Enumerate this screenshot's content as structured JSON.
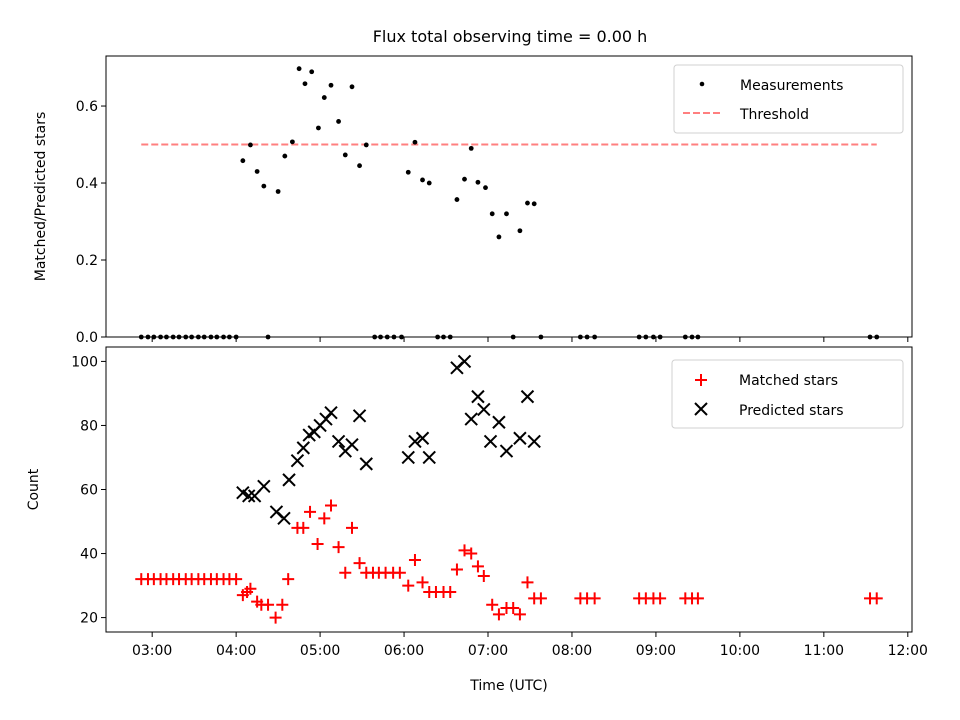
{
  "figure": {
    "title": "Flux total observing time = 0.00 h",
    "xlabel": "Time (UTC)"
  },
  "chart_data": [
    {
      "type": "scatter",
      "title": "Flux total observing time = 0.00 h",
      "xlabel": "",
      "ylabel": "Matched/Predicted stars",
      "xlim": [
        2.45,
        12.05
      ],
      "ylim": [
        0.0,
        0.73
      ],
      "yticks": [
        0.0,
        0.2,
        0.4,
        0.6
      ],
      "ytick_labels": [
        "0.0",
        "0.2",
        "0.4",
        "0.6"
      ],
      "legend": "top-right",
      "colors": {
        "measurements": "#000000",
        "threshold": "#ff7f7f"
      },
      "threshold": {
        "name": "Threshold",
        "value": 0.5,
        "x_start": 2.87,
        "x_end": 11.63
      },
      "series": [
        {
          "name": "Measurements",
          "points": [
            [
              2.87,
              0
            ],
            [
              2.95,
              0
            ],
            [
              3.02,
              0
            ],
            [
              3.1,
              0
            ],
            [
              3.17,
              0
            ],
            [
              3.25,
              0
            ],
            [
              3.32,
              0
            ],
            [
              3.4,
              0
            ],
            [
              3.47,
              0
            ],
            [
              3.55,
              0
            ],
            [
              3.62,
              0
            ],
            [
              3.7,
              0
            ],
            [
              3.77,
              0
            ],
            [
              3.85,
              0
            ],
            [
              3.92,
              0
            ],
            [
              4.0,
              0
            ],
            [
              4.08,
              0.458
            ],
            [
              4.17,
              0.499
            ],
            [
              4.25,
              0.43
            ],
            [
              4.33,
              0.392
            ],
            [
              4.38,
              0
            ],
            [
              4.5,
              0.378
            ],
            [
              4.58,
              0.47
            ],
            [
              4.67,
              0.507
            ],
            [
              4.75,
              0.697
            ],
            [
              4.82,
              0.658
            ],
            [
              4.9,
              0.689
            ],
            [
              4.98,
              0.543
            ],
            [
              5.05,
              0.622
            ],
            [
              5.13,
              0.654
            ],
            [
              5.22,
              0.56
            ],
            [
              5.3,
              0.473
            ],
            [
              5.38,
              0.65
            ],
            [
              5.47,
              0.445
            ],
            [
              5.55,
              0.499
            ],
            [
              5.65,
              0
            ],
            [
              5.72,
              0
            ],
            [
              5.8,
              0
            ],
            [
              5.88,
              0
            ],
            [
              5.97,
              0
            ],
            [
              6.05,
              0.428
            ],
            [
              6.13,
              0.506
            ],
            [
              6.22,
              0.408
            ],
            [
              6.3,
              0.4
            ],
            [
              6.4,
              0
            ],
            [
              6.47,
              0
            ],
            [
              6.55,
              0
            ],
            [
              6.63,
              0.357
            ],
            [
              6.72,
              0.41
            ],
            [
              6.8,
              0.49
            ],
            [
              6.88,
              0.402
            ],
            [
              6.97,
              0.388
            ],
            [
              7.05,
              0.32
            ],
            [
              7.13,
              0.26
            ],
            [
              7.22,
              0.32
            ],
            [
              7.3,
              0
            ],
            [
              7.38,
              0.276
            ],
            [
              7.47,
              0.348
            ],
            [
              7.55,
              0.346
            ],
            [
              7.63,
              0
            ],
            [
              8.1,
              0
            ],
            [
              8.18,
              0
            ],
            [
              8.27,
              0
            ],
            [
              8.8,
              0
            ],
            [
              8.88,
              0
            ],
            [
              8.97,
              0
            ],
            [
              9.05,
              0
            ],
            [
              9.35,
              0
            ],
            [
              9.43,
              0
            ],
            [
              9.5,
              0
            ],
            [
              11.55,
              0
            ],
            [
              11.63,
              0
            ]
          ]
        }
      ]
    },
    {
      "type": "scatter",
      "xlabel": "Time (UTC)",
      "ylabel": "Count",
      "xlim": [
        2.45,
        12.05
      ],
      "ylim": [
        15.5,
        104.5
      ],
      "yticks": [
        20,
        40,
        60,
        80,
        100
      ],
      "ytick_labels": [
        "20",
        "40",
        "60",
        "80",
        "100"
      ],
      "xticks": [
        3,
        4,
        5,
        6,
        7,
        8,
        9,
        10,
        11,
        12
      ],
      "xtick_labels": [
        "03:00",
        "04:00",
        "05:00",
        "06:00",
        "07:00",
        "08:00",
        "09:00",
        "10:00",
        "11:00",
        "12:00"
      ],
      "legend": "top-right",
      "colors": {
        "matched": "#ff0000",
        "predicted": "#000000"
      },
      "series": [
        {
          "name": "Matched stars",
          "marker": "+",
          "points": [
            [
              2.87,
              32
            ],
            [
              2.95,
              32
            ],
            [
              3.02,
              32
            ],
            [
              3.1,
              32
            ],
            [
              3.17,
              32
            ],
            [
              3.25,
              32
            ],
            [
              3.32,
              32
            ],
            [
              3.4,
              32
            ],
            [
              3.47,
              32
            ],
            [
              3.55,
              32
            ],
            [
              3.62,
              32
            ],
            [
              3.7,
              32
            ],
            [
              3.77,
              32
            ],
            [
              3.85,
              32
            ],
            [
              3.92,
              32
            ],
            [
              4.0,
              32
            ],
            [
              4.08,
              27
            ],
            [
              4.13,
              28
            ],
            [
              4.17,
              29
            ],
            [
              4.25,
              25
            ],
            [
              4.3,
              24
            ],
            [
              4.38,
              24
            ],
            [
              4.47,
              20
            ],
            [
              4.55,
              24
            ],
            [
              4.62,
              32
            ],
            [
              4.73,
              48
            ],
            [
              4.8,
              48
            ],
            [
              4.88,
              53
            ],
            [
              4.97,
              43
            ],
            [
              5.05,
              51
            ],
            [
              5.13,
              55
            ],
            [
              5.22,
              42
            ],
            [
              5.3,
              34
            ],
            [
              5.38,
              48
            ],
            [
              5.47,
              37
            ],
            [
              5.55,
              34
            ],
            [
              5.63,
              34
            ],
            [
              5.7,
              34
            ],
            [
              5.78,
              34
            ],
            [
              5.87,
              34
            ],
            [
              5.95,
              34
            ],
            [
              6.05,
              30
            ],
            [
              6.13,
              38
            ],
            [
              6.22,
              31
            ],
            [
              6.3,
              28
            ],
            [
              6.38,
              28
            ],
            [
              6.47,
              28
            ],
            [
              6.55,
              28
            ],
            [
              6.63,
              35
            ],
            [
              6.72,
              41
            ],
            [
              6.8,
              40
            ],
            [
              6.88,
              36
            ],
            [
              6.95,
              33
            ],
            [
              7.05,
              24
            ],
            [
              7.13,
              21
            ],
            [
              7.22,
              23
            ],
            [
              7.3,
              23
            ],
            [
              7.38,
              21
            ],
            [
              7.47,
              31
            ],
            [
              7.55,
              26
            ],
            [
              7.63,
              26
            ],
            [
              8.1,
              26
            ],
            [
              8.18,
              26
            ],
            [
              8.27,
              26
            ],
            [
              8.8,
              26
            ],
            [
              8.88,
              26
            ],
            [
              8.97,
              26
            ],
            [
              9.05,
              26
            ],
            [
              9.35,
              26
            ],
            [
              9.43,
              26
            ],
            [
              9.5,
              26
            ],
            [
              11.55,
              26
            ],
            [
              11.63,
              26
            ]
          ]
        },
        {
          "name": "Predicted stars",
          "marker": "x",
          "points": [
            [
              4.08,
              59
            ],
            [
              4.15,
              58
            ],
            [
              4.22,
              58
            ],
            [
              4.33,
              61
            ],
            [
              4.48,
              53
            ],
            [
              4.57,
              51
            ],
            [
              4.63,
              63
            ],
            [
              4.73,
              69
            ],
            [
              4.8,
              73
            ],
            [
              4.87,
              77
            ],
            [
              4.93,
              78
            ],
            [
              5.0,
              80
            ],
            [
              5.07,
              82
            ],
            [
              5.13,
              84
            ],
            [
              5.22,
              75
            ],
            [
              5.3,
              72
            ],
            [
              5.38,
              74
            ],
            [
              5.47,
              83
            ],
            [
              5.55,
              68
            ],
            [
              6.05,
              70
            ],
            [
              6.13,
              75
            ],
            [
              6.22,
              76
            ],
            [
              6.3,
              70
            ],
            [
              6.63,
              98
            ],
            [
              6.72,
              100
            ],
            [
              6.8,
              82
            ],
            [
              6.88,
              89
            ],
            [
              6.95,
              85
            ],
            [
              7.03,
              75
            ],
            [
              7.13,
              81
            ],
            [
              7.22,
              72
            ],
            [
              7.38,
              76
            ],
            [
              7.47,
              89
            ],
            [
              7.55,
              75
            ]
          ]
        }
      ]
    }
  ]
}
